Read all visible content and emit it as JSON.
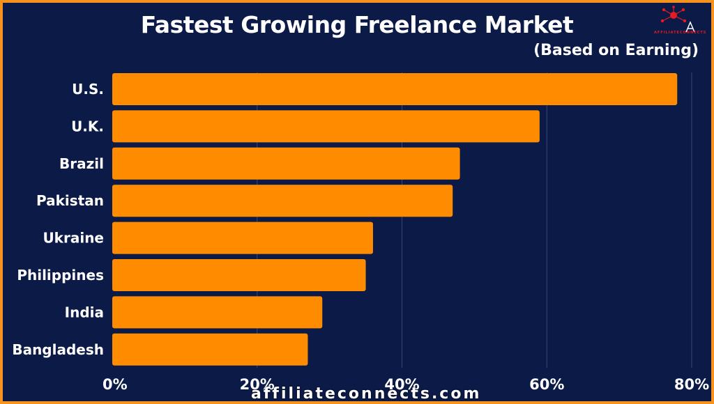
{
  "chart_data": {
    "type": "bar",
    "orientation": "horizontal",
    "title": "Fastest Growing Freelance Market",
    "subtitle": "(Based on Earning)",
    "categories": [
      "U.S.",
      "U.K.",
      "Brazil",
      "Pakistan",
      "Ukraine",
      "Philippines",
      "India",
      "Bangladesh"
    ],
    "values": [
      78,
      59,
      48,
      47,
      36,
      35,
      29,
      27
    ],
    "xlim": [
      0,
      80
    ],
    "xticks": [
      0,
      20,
      40,
      60,
      80
    ],
    "xtick_labels": [
      "0%",
      "20%",
      "40%",
      "60%",
      "80%"
    ],
    "grid": "vertical",
    "bar_color": "#ff8c00",
    "background_color": "#0c1a47"
  },
  "watermark": "affiliateconnects.com",
  "logo_text": "AFFILIATECONNECTS",
  "logo_icon": "network-nodes-icon"
}
